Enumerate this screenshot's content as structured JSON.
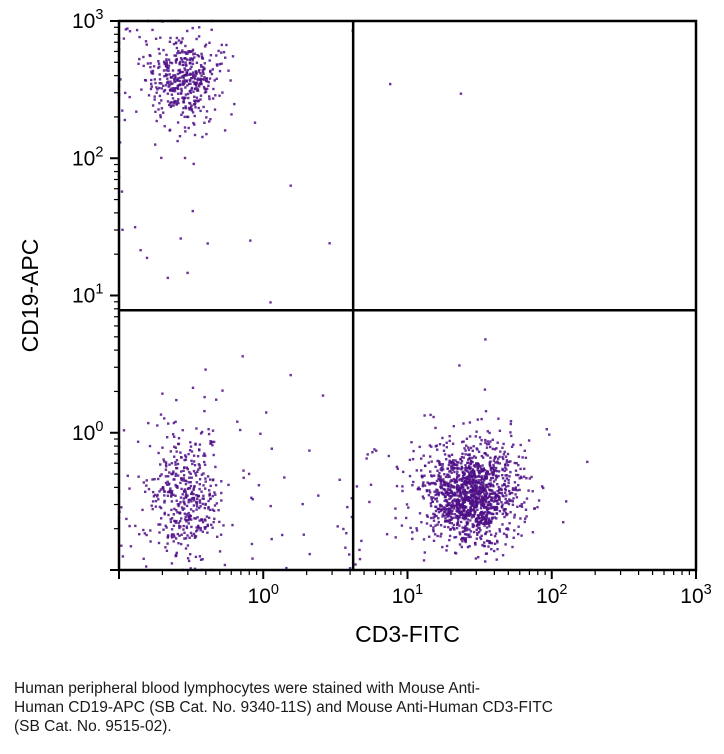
{
  "caption": {
    "lines": [
      "Human peripheral blood lymphocytes were stained with Mouse Anti-",
      "Human CD19-APC (SB Cat. No. 9340-11S) and Mouse Anti-Human CD3-FITC",
      "(SB Cat. No. 9515-02)."
    ]
  },
  "chart_data": {
    "type": "scatter",
    "title": "",
    "xlabel": "CD3-FITC",
    "ylabel": "CD19-APC",
    "x_scale": "log",
    "y_scale": "log",
    "x_log_range": [
      -1,
      3
    ],
    "y_log_range": [
      -1,
      3
    ],
    "x_tick_exponents": [
      0,
      1,
      2,
      3
    ],
    "y_tick_exponents": [
      0,
      1,
      2,
      3
    ],
    "grid": "off",
    "legend": "none",
    "dot_color": "#4e0e86",
    "axis_color": "#000000",
    "quadrant_gates": {
      "x_value": 4.2,
      "y_value": 7.8
    },
    "populations": [
      {
        "name": "CD19-positive B cells core",
        "n": 340,
        "cx": -0.55,
        "cy": 2.58,
        "sx": 0.11,
        "sy": 0.14
      },
      {
        "name": "CD19-positive B cells halo",
        "n": 130,
        "cx": -0.55,
        "cy": 2.55,
        "sx": 0.22,
        "sy": 0.27
      },
      {
        "name": "double-negative core",
        "n": 360,
        "cx": -0.55,
        "cy": -0.49,
        "sx": 0.12,
        "sy": 0.2
      },
      {
        "name": "double-negative halo",
        "n": 90,
        "cx": -0.55,
        "cy": -0.42,
        "sx": 0.25,
        "sy": 0.33
      },
      {
        "name": "CD3-positive T cells core",
        "n": 1250,
        "cx": 1.43,
        "cy": -0.45,
        "sx": 0.16,
        "sy": 0.18
      },
      {
        "name": "CD3-positive T cells halo",
        "n": 180,
        "cx": 1.42,
        "cy": -0.42,
        "sx": 0.28,
        "sy": 0.28
      }
    ],
    "sparse_boxes": [
      {
        "name": "left-edge-column",
        "n": 10,
        "x0": -1.02,
        "x1": -0.96,
        "y0": 1.25,
        "y1": 2.95
      },
      {
        "name": "lower-left-scatter",
        "n": 24,
        "x0": -1.0,
        "x1": 0.15,
        "y0": -1.0,
        "y1": 0.15
      },
      {
        "name": "lower-mid-scatter",
        "n": 18,
        "x0": -0.2,
        "x1": 0.75,
        "y0": -1.0,
        "y1": -0.25
      },
      {
        "name": "gate-left-column",
        "n": 12,
        "x0": 0.5,
        "x1": 0.8,
        "y0": -0.85,
        "y1": -0.1
      },
      {
        "name": "upper-left-sparse",
        "n": 8,
        "x0": -0.95,
        "x1": -0.2,
        "y0": 1.1,
        "y1": 2.1
      }
    ],
    "outlier_points": [
      {
        "x": 0.88,
        "y": 2.54
      },
      {
        "x": 1.37,
        "y": 2.47
      },
      {
        "x": 0.62,
        "y": 2.93
      },
      {
        "x": 0.19,
        "y": 1.8
      },
      {
        "x": -0.09,
        "y": 1.4
      },
      {
        "x": 0.46,
        "y": 1.38
      },
      {
        "x": -0.85,
        "y": 1.33
      },
      {
        "x": 0.19,
        "y": 0.42
      },
      {
        "x": -0.4,
        "y": 0.46
      },
      {
        "x": -0.16,
        "y": 0.02
      },
      {
        "x": 0.32,
        "y": -0.13
      },
      {
        "x": 1.54,
        "y": 0.68
      },
      {
        "x": 1.36,
        "y": 0.49
      },
      {
        "x": 1.16,
        "y": 0.13
      },
      {
        "x": 2.1,
        "y": -0.5
      },
      {
        "x": 0.05,
        "y": 0.95
      }
    ]
  }
}
